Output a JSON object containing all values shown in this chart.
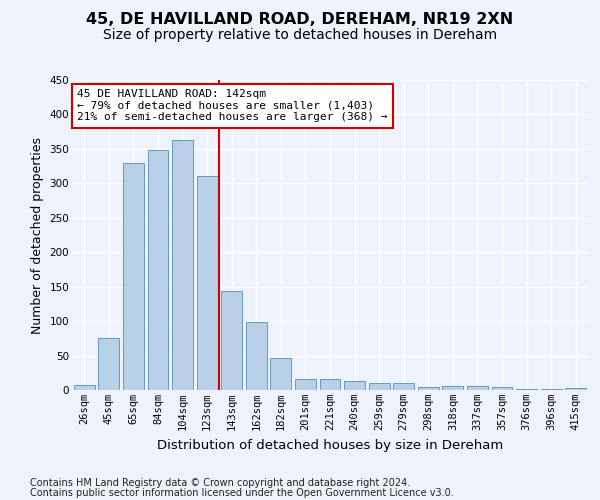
{
  "title": "45, DE HAVILLAND ROAD, DEREHAM, NR19 2XN",
  "subtitle": "Size of property relative to detached houses in Dereham",
  "xlabel": "Distribution of detached houses by size in Dereham",
  "ylabel": "Number of detached properties",
  "categories": [
    "26sqm",
    "45sqm",
    "65sqm",
    "84sqm",
    "104sqm",
    "123sqm",
    "143sqm",
    "162sqm",
    "182sqm",
    "201sqm",
    "221sqm",
    "240sqm",
    "259sqm",
    "279sqm",
    "298sqm",
    "318sqm",
    "337sqm",
    "357sqm",
    "376sqm",
    "396sqm",
    "415sqm"
  ],
  "values": [
    7,
    75,
    330,
    348,
    363,
    311,
    143,
    98,
    46,
    16,
    16,
    13,
    10,
    10,
    4,
    6,
    6,
    4,
    2,
    1,
    3
  ],
  "bar_color": "#b8d0e8",
  "bar_edge_color": "#6899c0",
  "annotation_text": "45 DE HAVILLAND ROAD: 142sqm\n← 79% of detached houses are smaller (1,403)\n21% of semi-detached houses are larger (368) →",
  "annotation_box_color": "#ffffff",
  "annotation_box_edge_color": "#cc0000",
  "vline_color": "#cc0000",
  "vline_x_index": 6,
  "footnote_line1": "Contains HM Land Registry data © Crown copyright and database right 2024.",
  "footnote_line2": "Contains public sector information licensed under the Open Government Licence v3.0.",
  "ylim": [
    0,
    450
  ],
  "background_color": "#eef2fa",
  "grid_color": "#ffffff",
  "title_fontsize": 11.5,
  "subtitle_fontsize": 10,
  "xlabel_fontsize": 9.5,
  "ylabel_fontsize": 9,
  "tick_fontsize": 7.5,
  "annotation_fontsize": 8,
  "footnote_fontsize": 7
}
